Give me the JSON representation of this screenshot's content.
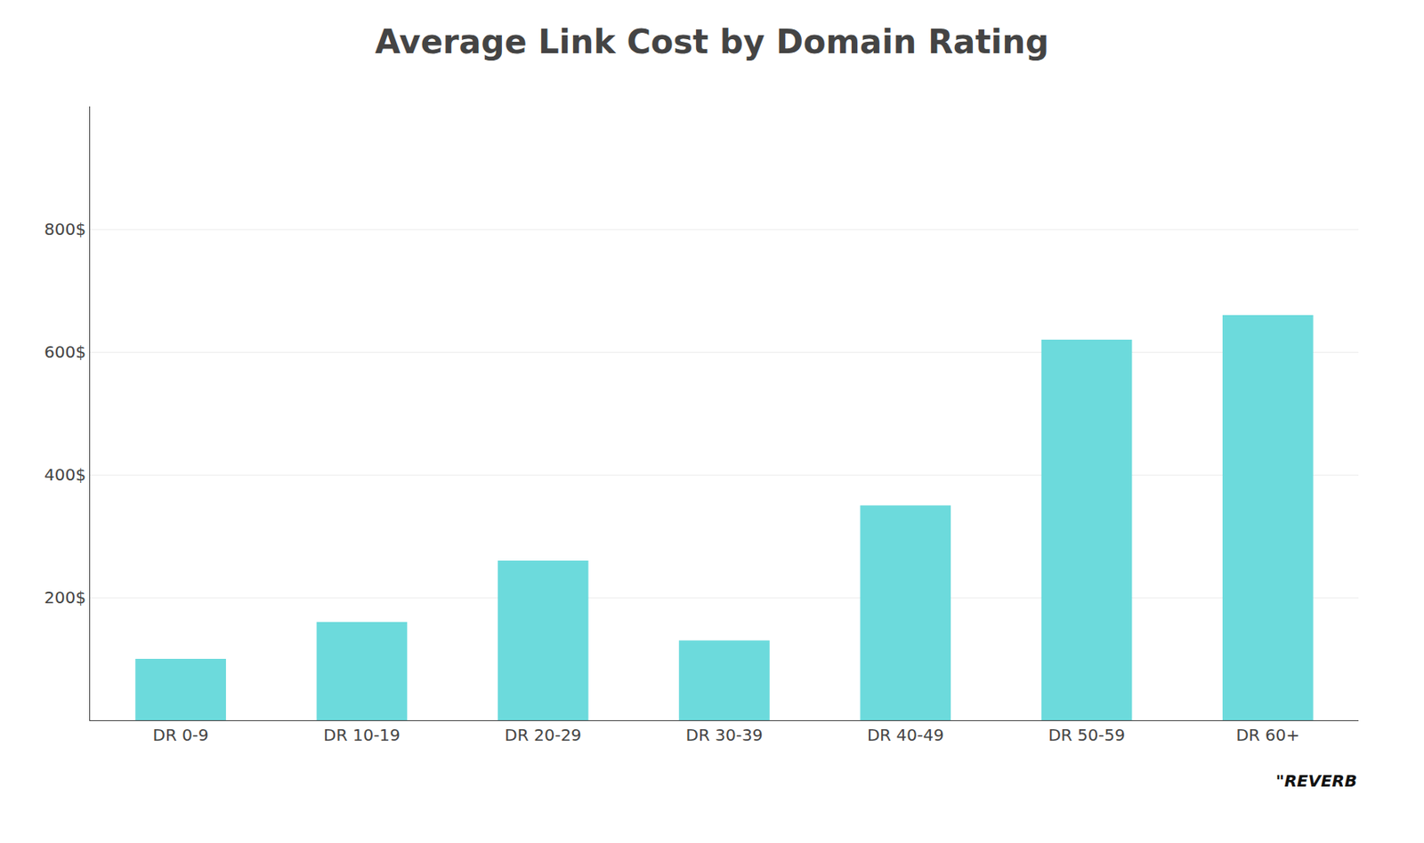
{
  "chart_data": {
    "type": "bar",
    "title": "Average Link Cost by Domain Rating",
    "categories": [
      "DR 0-9",
      "DR 10-19",
      "DR 20-29",
      "DR 30-39",
      "DR 40-49",
      "DR 50-59",
      "DR 60+"
    ],
    "values": [
      100,
      160,
      260,
      130,
      350,
      620,
      660
    ],
    "color": "#6CDADC",
    "ylim": [
      0,
      1000
    ],
    "yticks": [
      {
        "value": 200,
        "label": "200$"
      },
      {
        "value": 400,
        "label": "400$"
      },
      {
        "value": 600,
        "label": "600$"
      },
      {
        "value": 800,
        "label": "800$"
      }
    ],
    "grid": true,
    "annotations": [
      "\"REVERB"
    ]
  }
}
